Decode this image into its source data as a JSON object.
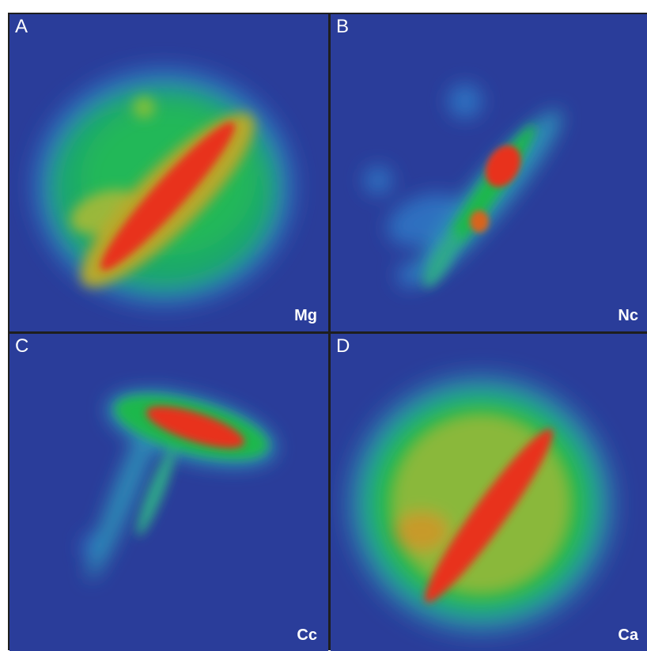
{
  "panels": [
    {
      "letter": "A",
      "tag": "Mg"
    },
    {
      "letter": "B",
      "tag": "Nc"
    },
    {
      "letter": "C",
      "tag": "Cc"
    },
    {
      "letter": "D",
      "tag": "Ca"
    }
  ],
  "colors": {
    "background": "#2a3d9a",
    "low": "#2f5fb8",
    "mid": "#1fb84c",
    "mid_high": "#7fb83a",
    "high": "#e8321a"
  }
}
